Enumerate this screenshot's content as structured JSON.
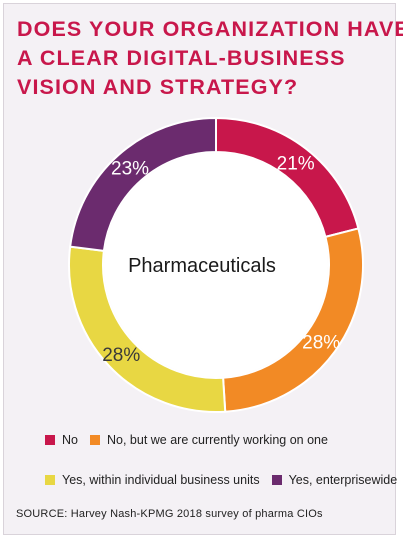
{
  "title_lines": [
    "Does your organization have",
    "a clear digital-business",
    "vision and strategy?"
  ],
  "chart_data": {
    "type": "pie",
    "donut": true,
    "center_label": "Pharmaceuticals",
    "categories": [
      "No",
      "No, but we are currently working on one",
      "Yes, within individual business units",
      "Yes, enterprisewide"
    ],
    "values": [
      21,
      28,
      28,
      23
    ],
    "value_labels": [
      "21%",
      "28%",
      "28%",
      "23%"
    ],
    "colors": [
      "#c8174b",
      "#f28a25",
      "#e8d743",
      "#6b2b6e"
    ],
    "legend_position": "bottom"
  },
  "legend": {
    "row1": [
      {
        "label": "No",
        "color": "#c8174b"
      },
      {
        "label": "No, but we are currently working on one",
        "color": "#f28a25"
      }
    ],
    "row2": [
      {
        "label": "Yes, within individual business units",
        "color": "#e8d743"
      },
      {
        "label": "Yes, enterprisewide",
        "color": "#6b2b6e"
      }
    ]
  },
  "source": "SOURCE: Harvey Nash-KPMG 2018 survey of pharma CIOs"
}
